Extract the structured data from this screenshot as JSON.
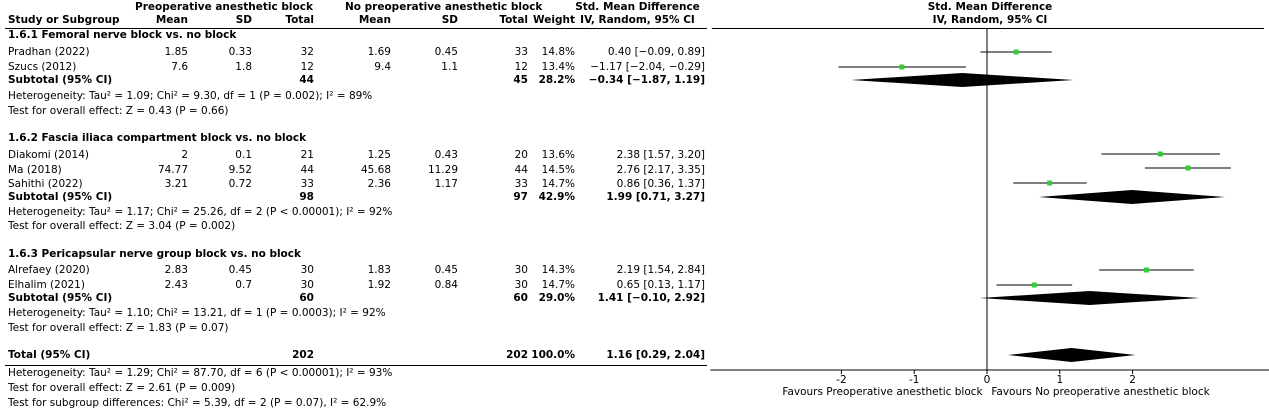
{
  "header": {
    "group1": "Preoperative anesthetic block",
    "group2": "No preoperative anesthetic block",
    "smd_title": "Std. Mean Difference",
    "smd_method": "IV, Random, 95% CI",
    "plot_title": "Std. Mean Difference",
    "plot_method": "IV, Random, 95% CI",
    "cols": {
      "study": "Study or Subgroup",
      "mean1": "Mean",
      "sd1": "SD",
      "total1": "Total",
      "mean2": "Mean",
      "sd2": "SD",
      "total2": "Total",
      "weight": "Weight"
    }
  },
  "subgroups": [
    {
      "title": "1.6.1 Femoral nerve block vs. no block",
      "studies": [
        {
          "name": "Pradhan (2022)",
          "mean1": "1.85",
          "sd1": "0.33",
          "total1": "32",
          "mean2": "1.69",
          "sd2": "0.45",
          "total2": "33",
          "weight": "14.8%",
          "ci": "0.40 [−0.09, 0.89]"
        },
        {
          "name": "Szucs (2012)",
          "mean1": "7.6",
          "sd1": "1.8",
          "total1": "12",
          "mean2": "9.4",
          "sd2": "1.1",
          "total2": "12",
          "weight": "13.4%",
          "ci": "−1.17 [−2.04, −0.29]"
        }
      ],
      "subtotal": {
        "label": "Subtotal (95% CI)",
        "total1": "44",
        "total2": "45",
        "weight": "28.2%",
        "ci": "−0.34 [−1.87, 1.19]"
      },
      "heterogeneity": "Heterogeneity: Tau² = 1.09; Chi² = 9.30, df = 1 (P = 0.002); I² = 89%",
      "overall": "Test for overall effect: Z = 0.43 (P = 0.66)"
    },
    {
      "title": "1.6.2 Fascia iliaca compartment block vs. no block",
      "studies": [
        {
          "name": "Diakomi (2014)",
          "mean1": "2",
          "sd1": "0.1",
          "total1": "21",
          "mean2": "1.25",
          "sd2": "0.43",
          "total2": "20",
          "weight": "13.6%",
          "ci": "2.38 [1.57, 3.20]"
        },
        {
          "name": "Ma (2018)",
          "mean1": "74.77",
          "sd1": "9.52",
          "total1": "44",
          "mean2": "45.68",
          "sd2": "11.29",
          "total2": "44",
          "weight": "14.5%",
          "ci": "2.76 [2.17, 3.35]"
        },
        {
          "name": "Sahithi (2022)",
          "mean1": "3.21",
          "sd1": "0.72",
          "total1": "33",
          "mean2": "2.36",
          "sd2": "1.17",
          "total2": "33",
          "weight": "14.7%",
          "ci": "0.86 [0.36, 1.37]"
        }
      ],
      "subtotal": {
        "label": "Subtotal (95% CI)",
        "total1": "98",
        "total2": "97",
        "weight": "42.9%",
        "ci": "1.99 [0.71, 3.27]"
      },
      "heterogeneity": "Heterogeneity: Tau² = 1.17; Chi² = 25.26, df = 2 (P < 0.00001); I² = 92%",
      "overall": "Test for overall effect: Z = 3.04 (P = 0.002)"
    },
    {
      "title": "1.6.3 Pericapsular nerve group block vs. no block",
      "studies": [
        {
          "name": "Alrefaey (2020)",
          "mean1": "2.83",
          "sd1": "0.45",
          "total1": "30",
          "mean2": "1.83",
          "sd2": "0.45",
          "total2": "30",
          "weight": "14.3%",
          "ci": "2.19 [1.54, 2.84]"
        },
        {
          "name": "Elhalim (2021)",
          "mean1": "2.43",
          "sd1": "0.7",
          "total1": "30",
          "mean2": "1.92",
          "sd2": "0.84",
          "total2": "30",
          "weight": "14.7%",
          "ci": "0.65 [0.13, 1.17]"
        }
      ],
      "subtotal": {
        "label": "Subtotal (95% CI)",
        "total1": "60",
        "total2": "60",
        "weight": "29.0%",
        "ci": "1.41 [−0.10, 2.92]"
      },
      "heterogeneity": "Heterogeneity: Tau² = 1.10; Chi² = 13.21, df = 1 (P = 0.0003); I² = 92%",
      "overall": "Test for overall effect: Z = 1.83 (P = 0.07)"
    }
  ],
  "total": {
    "label": "Total (95% CI)",
    "total1": "202",
    "total2": "202",
    "weight": "100.0%",
    "ci": "1.16 [0.29, 2.04]",
    "heterogeneity": "Heterogeneity: Tau² = 1.29; Chi² = 87.70, df = 6 (P < 0.00001); I² = 93%",
    "overall": "Test for overall effect: Z = 2.61 (P = 0.009)",
    "subgroup_diff": "Test for subgroup differences: Chi² = 5.39, df = 2 (P = 0.07), I² = 62.9%"
  },
  "axis": {
    "favours_left": "Favours Preoperative anesthetic block",
    "favours_right": "Favours No preoperative anesthetic block",
    "ticks": [
      "-2",
      "-1",
      "0",
      "1",
      "2"
    ]
  },
  "colors": {
    "marker": "#33cc33",
    "line": "#000000",
    "diamond": "#000000"
  },
  "chart_data": {
    "type": "forest",
    "xlim": [
      -3.8,
      4
    ],
    "ticks": [
      -2,
      -1,
      0,
      1,
      2
    ],
    "studies": [
      {
        "name": "Pradhan (2022)",
        "est": 0.4,
        "lo": -0.09,
        "hi": 0.89
      },
      {
        "name": "Szucs (2012)",
        "est": -1.17,
        "lo": -2.04,
        "hi": -0.29
      },
      {
        "name": "Diakomi (2014)",
        "est": 2.38,
        "lo": 1.57,
        "hi": 3.2
      },
      {
        "name": "Ma (2018)",
        "est": 2.76,
        "lo": 2.17,
        "hi": 3.35
      },
      {
        "name": "Sahithi (2022)",
        "est": 0.86,
        "lo": 0.36,
        "hi": 1.37
      },
      {
        "name": "Alrefaey (2020)",
        "est": 2.19,
        "lo": 1.54,
        "hi": 2.84
      },
      {
        "name": "Elhalim (2021)",
        "est": 0.65,
        "lo": 0.13,
        "hi": 1.17
      }
    ],
    "diamonds": [
      {
        "name": "Subtotal 1.6.1",
        "est": -0.34,
        "lo": -1.87,
        "hi": 1.19
      },
      {
        "name": "Subtotal 1.6.2",
        "est": 1.99,
        "lo": 0.71,
        "hi": 3.27
      },
      {
        "name": "Subtotal 1.6.3",
        "est": 1.41,
        "lo": -0.1,
        "hi": 2.92
      },
      {
        "name": "Total",
        "est": 1.16,
        "lo": 0.29,
        "hi": 2.04
      }
    ]
  }
}
